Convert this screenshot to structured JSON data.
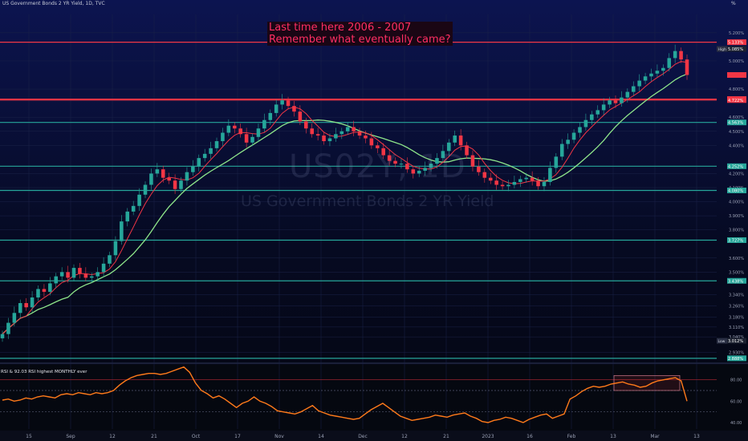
{
  "header": {
    "title": "US Government Bonds 2 YR Yield, 1D, TVC",
    "unit": "%"
  },
  "watermark": {
    "symbol": "US02Y, 1D",
    "name": "US Government Bonds 2 YR Yield"
  },
  "annotation": {
    "line1": "Last time here 2006 - 2007",
    "line2": "Remember what eventually came?"
  },
  "chart_data": [
    {
      "type": "candlestick",
      "title": "US Government Bonds 2 YR Yield, 1D, TVC",
      "y_unit": "%",
      "ylim": [
        2.87,
        5.33
      ],
      "y_ticks": [
        "5.200%",
        "5.000%",
        "4.800%",
        "4.600%",
        "4.500%",
        "4.400%",
        "4.200%",
        "4.100%",
        "4.000%",
        "3.900%",
        "3.800%",
        "3.600%",
        "3.500%",
        "3.340%",
        "3.260%",
        "3.180%",
        "3.110%",
        "3.040%",
        "2.930%"
      ],
      "x_ticks": [
        "15",
        "Sep",
        "12",
        "21",
        "Oct",
        "17",
        "Nov",
        "14",
        "Dec",
        "12",
        "21",
        "2023",
        "16",
        "Feb",
        "13",
        "Mar",
        "13"
      ],
      "moving_averages": [
        {
          "color": "#f23645"
        },
        {
          "color": "#8ee58a"
        }
      ],
      "horizontal_levels": [
        {
          "value": 5.133,
          "label": "5.133%",
          "color": "#f23645"
        },
        {
          "value": 4.729,
          "label": "4.729%",
          "color": "#f23645"
        },
        {
          "value": 4.722,
          "label": "4.722%",
          "color": "#f23645"
        },
        {
          "value": 4.563,
          "label": "4.563%",
          "color": "#26a69a"
        },
        {
          "value": 4.252,
          "label": "4.252%",
          "color": "#26a69a"
        },
        {
          "value": 4.08,
          "label": "4.080%",
          "color": "#26a69a"
        },
        {
          "value": 3.727,
          "label": "3.727%",
          "color": "#26a69a"
        },
        {
          "value": 3.438,
          "label": "3.438%",
          "color": "#26a69a"
        },
        {
          "value": 2.888,
          "label": "2.888%",
          "color": "#26a69a"
        }
      ],
      "markers": [
        {
          "label": "High",
          "value_label": "5.085%",
          "value": 5.085
        },
        {
          "label": "Low",
          "value_label": "3.012%",
          "value": 3.012
        },
        {
          "label": "",
          "value_label": "",
          "value": 4.9
        }
      ],
      "close_series": [
        3.06,
        3.14,
        3.21,
        3.28,
        3.25,
        3.32,
        3.38,
        3.36,
        3.42,
        3.47,
        3.5,
        3.46,
        3.53,
        3.49,
        3.46,
        3.47,
        3.5,
        3.56,
        3.62,
        3.72,
        3.86,
        3.93,
        3.97,
        4.05,
        4.12,
        4.2,
        4.23,
        4.17,
        4.15,
        4.09,
        4.15,
        4.21,
        4.25,
        4.31,
        4.34,
        4.38,
        4.43,
        4.49,
        4.54,
        4.52,
        4.48,
        4.42,
        4.46,
        4.52,
        4.58,
        4.63,
        4.69,
        4.72,
        4.68,
        4.64,
        4.57,
        4.52,
        4.48,
        4.47,
        4.43,
        4.45,
        4.48,
        4.5,
        4.53,
        4.5,
        4.47,
        4.45,
        4.4,
        4.38,
        4.33,
        4.29,
        4.27,
        4.27,
        4.23,
        4.2,
        4.22,
        4.24,
        4.27,
        4.31,
        4.36,
        4.42,
        4.47,
        4.4,
        4.33,
        4.25,
        4.21,
        4.17,
        4.15,
        4.12,
        4.11,
        4.12,
        4.14,
        4.16,
        4.17,
        4.15,
        4.11,
        4.14,
        4.24,
        4.32,
        4.41,
        4.44,
        4.49,
        4.53,
        4.58,
        4.62,
        4.65,
        4.69,
        4.72,
        4.7,
        4.74,
        4.78,
        4.82,
        4.86,
        4.89,
        4.91,
        4.93,
        4.95,
        5.02,
        5.07,
        5.01,
        4.9
      ]
    },
    {
      "type": "line",
      "title": "RSI",
      "legend_text": "RSI & 92.03 RSI highest MONTHLY ever",
      "ylim": [
        34,
        94
      ],
      "y_ticks": [
        "80.00",
        "60.00",
        "40.00"
      ],
      "reference_lines": [
        80,
        70,
        50
      ],
      "values": [
        61,
        62,
        60,
        61,
        63,
        62,
        64,
        65,
        64,
        63,
        66,
        67,
        66,
        68,
        67,
        66,
        68,
        67,
        68,
        70,
        75,
        79,
        82,
        84,
        85,
        86,
        86,
        85,
        86,
        88,
        90,
        92,
        87,
        77,
        70,
        67,
        63,
        65,
        62,
        58,
        54,
        58,
        60,
        64,
        60,
        58,
        55,
        51,
        50,
        49,
        48,
        50,
        53,
        56,
        51,
        49,
        47,
        46,
        45,
        44,
        43,
        44,
        48,
        52,
        55,
        58,
        54,
        50,
        46,
        44,
        42,
        43,
        44,
        45,
        47,
        46,
        45,
        47,
        48,
        49,
        46,
        44,
        41,
        40,
        42,
        43,
        45,
        44,
        42,
        40,
        43,
        45,
        47,
        48,
        44,
        46,
        48,
        62,
        65,
        69,
        72,
        74,
        73,
        74,
        76,
        77,
        78,
        76,
        75,
        73,
        74,
        77,
        79,
        80,
        81,
        82,
        79,
        60
      ]
    }
  ]
}
